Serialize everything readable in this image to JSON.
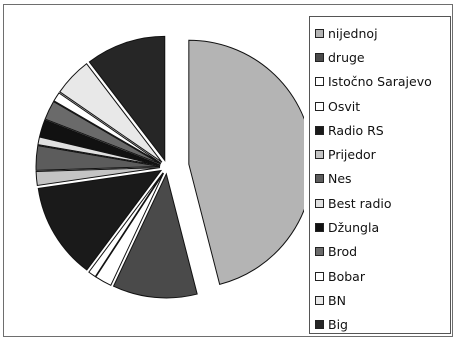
{
  "chart_data": {
    "type": "pie",
    "exploded": true,
    "title": "",
    "legend_position": "right",
    "start_slice": "nijednoj",
    "slices": [
      {
        "label": "nijednoj",
        "value": 46.0,
        "color": "#b4b4b4"
      },
      {
        "label": "druge",
        "value": 11.0,
        "color": "#4a4a4a"
      },
      {
        "label": "Istočno Sarajevo",
        "value": 2.2,
        "color": "#ffffff"
      },
      {
        "label": "Osvit",
        "value": 1.0,
        "color": "#ffffff"
      },
      {
        "label": "Radio RS",
        "value": 12.5,
        "color": "#1a1a1a"
      },
      {
        "label": "Prijedor",
        "value": 1.8,
        "color": "#c4c4c4"
      },
      {
        "label": "Nes",
        "value": 3.2,
        "color": "#5c5c5c"
      },
      {
        "label": "Best radio",
        "value": 1.0,
        "color": "#e0e0e0"
      },
      {
        "label": "Džungla",
        "value": 2.2,
        "color": "#111111"
      },
      {
        "label": "Brod",
        "value": 2.5,
        "color": "#6a6a6a"
      },
      {
        "label": "Bobar",
        "value": 1.2,
        "color": "#ffffff"
      },
      {
        "label": "BN",
        "value": 5.0,
        "color": "#e8e8e8"
      },
      {
        "label": "Big",
        "value": 10.4,
        "color": "#262626"
      }
    ]
  }
}
